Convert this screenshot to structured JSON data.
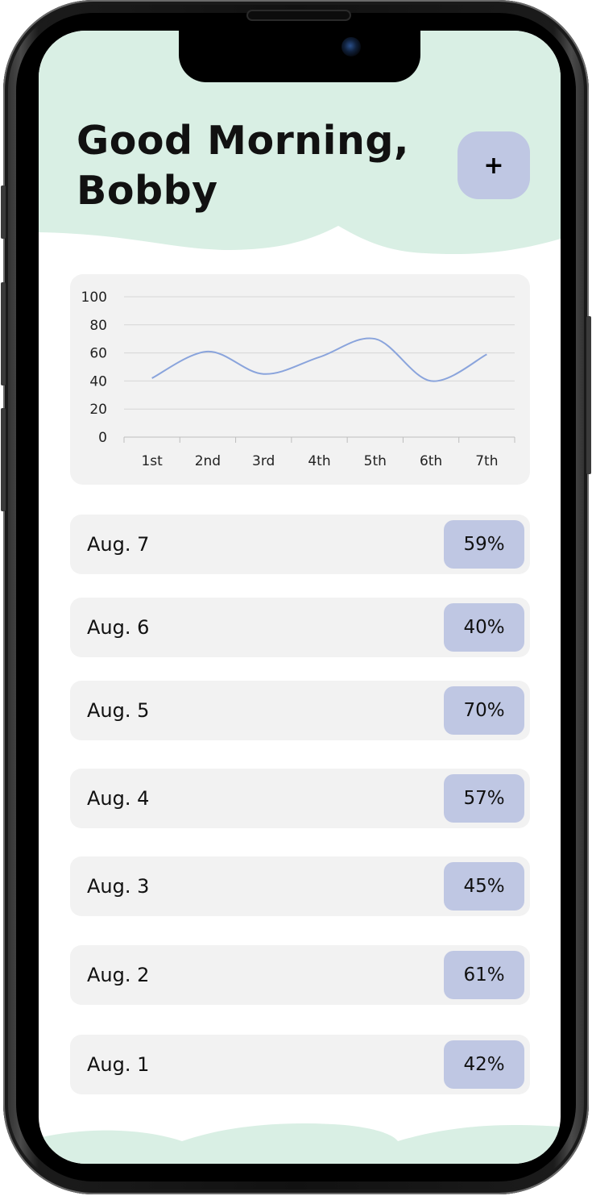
{
  "header": {
    "greeting_line1": "Good Morning,",
    "greeting_line2": "Bobby",
    "add_button_label": "+"
  },
  "colors": {
    "header_bg": "#d9efe4",
    "accent": "#bfc7e3",
    "card_bg": "#f2f2f2",
    "line": "#8aa4dc"
  },
  "chart_data": {
    "type": "line",
    "categories": [
      "1st",
      "2nd",
      "3rd",
      "4th",
      "5th",
      "6th",
      "7th"
    ],
    "series": [
      {
        "values": [
          42,
          61,
          45,
          57,
          70,
          40,
          59
        ]
      }
    ],
    "ylim": [
      0,
      100
    ],
    "yticks": [
      0,
      20,
      40,
      60,
      80,
      100
    ],
    "grid": true,
    "smooth": true
  },
  "entries": [
    {
      "date": "Aug. 7",
      "percent": "59%"
    },
    {
      "date": "Aug. 6",
      "percent": "40%"
    },
    {
      "date": "Aug. 5",
      "percent": "70%"
    },
    {
      "date": "Aug. 4",
      "percent": "57%"
    },
    {
      "date": "Aug. 3",
      "percent": "45%"
    },
    {
      "date": "Aug. 2",
      "percent": "61%"
    },
    {
      "date": "Aug. 1",
      "percent": "42%"
    }
  ]
}
